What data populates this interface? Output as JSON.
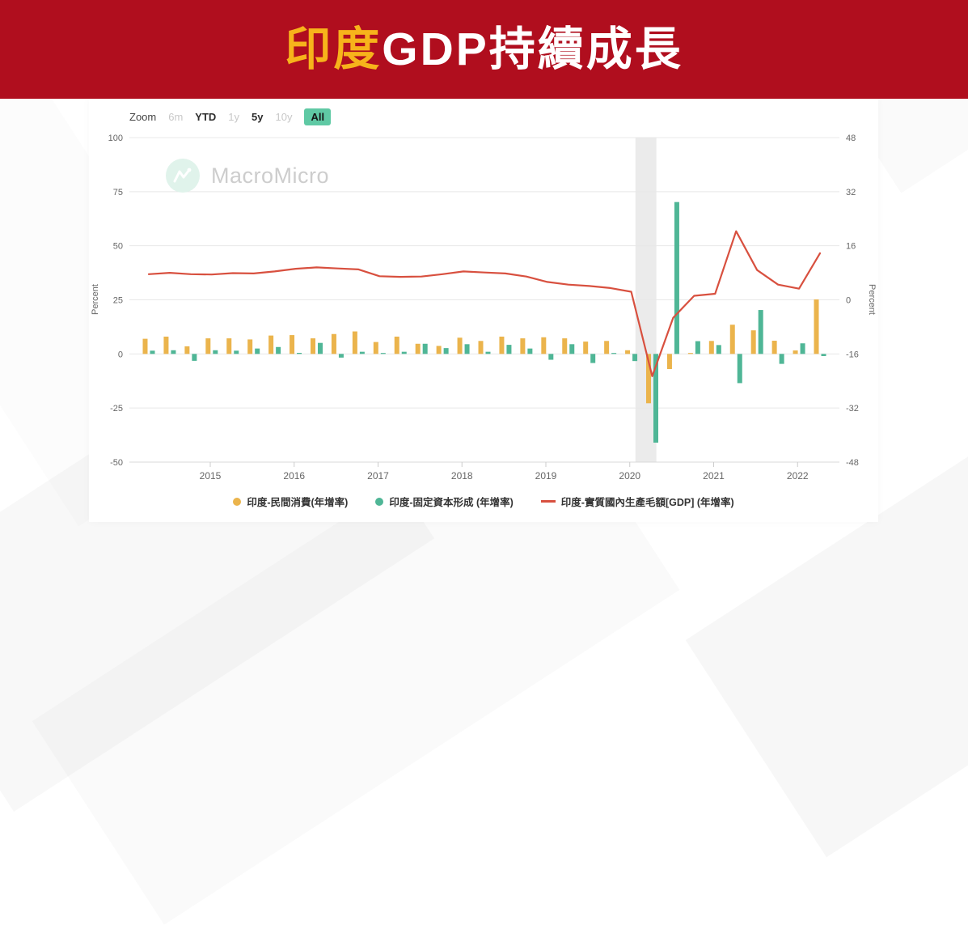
{
  "banner": {
    "title_highlight": "印度",
    "title_rest": "GDP持續成長"
  },
  "watermark": {
    "text": "MacroMicro"
  },
  "toolbar": {
    "buttons": [
      {
        "label": "Zoom",
        "state": "label"
      },
      {
        "label": "6m",
        "state": "disabled"
      },
      {
        "label": "YTD",
        "state": "normal"
      },
      {
        "label": "1y",
        "state": "disabled"
      },
      {
        "label": "5y",
        "state": "normal"
      },
      {
        "label": "10y",
        "state": "disabled"
      },
      {
        "label": "All",
        "state": "active"
      }
    ]
  },
  "legend": [
    {
      "label": "印度-民間消費(年增率)",
      "marker": "circle",
      "color": "#EBB44C"
    },
    {
      "label": "印度-固定資本形成 (年增率)",
      "marker": "circle",
      "color": "#4FB696"
    },
    {
      "label": "印度-實質國內生產毛額[GDP] (年增率)",
      "marker": "line",
      "color": "#D8503F"
    }
  ],
  "chart_data": {
    "type": "combo",
    "x": [
      "2014-04",
      "2014-07",
      "2014-10",
      "2015-01",
      "2015-04",
      "2015-07",
      "2015-10",
      "2016-01",
      "2016-04",
      "2016-07",
      "2016-10",
      "2017-01",
      "2017-04",
      "2017-07",
      "2017-10",
      "2018-01",
      "2018-04",
      "2018-07",
      "2018-10",
      "2019-01",
      "2019-04",
      "2019-07",
      "2019-10",
      "2020-01",
      "2020-04",
      "2020-07",
      "2020-10",
      "2021-01",
      "2021-04",
      "2021-07",
      "2021-10",
      "2022-01",
      "2022-04"
    ],
    "series": [
      {
        "name": "印度-民間消費(年增率)",
        "type": "bar",
        "axis": "left",
        "color": "#EBB44C",
        "values": [
          7.0,
          8.0,
          3.5,
          7.2,
          7.2,
          6.7,
          8.5,
          8.7,
          7.2,
          9.2,
          10.4,
          5.5,
          8.0,
          4.7,
          3.7,
          7.5,
          6.0,
          8.0,
          7.2,
          7.7,
          7.2,
          5.7,
          6.0,
          1.7,
          -22.8,
          -7.0,
          0.4,
          6.0,
          13.5,
          10.9,
          6.1,
          1.6,
          25.2
        ]
      },
      {
        "name": "印度-固定資本形成 (年增率)",
        "type": "bar",
        "axis": "left",
        "color": "#4FB696",
        "values": [
          1.5,
          1.7,
          -3.2,
          1.7,
          1.5,
          2.5,
          3.2,
          0.5,
          5.1,
          -1.7,
          1.0,
          0.2,
          1.0,
          4.7,
          2.7,
          4.5,
          1.0,
          4.2,
          2.5,
          -2.7,
          4.5,
          -4.2,
          0.3,
          -3.3,
          -41.0,
          70.2,
          5.9,
          4.1,
          -13.5,
          20.3,
          -4.6,
          4.9,
          -1.0
        ]
      },
      {
        "name": "印度-實質國內生產毛額[GDP] (年增率)",
        "type": "line",
        "axis": "right",
        "color": "#D8503F",
        "values": [
          7.6,
          8.0,
          7.6,
          7.5,
          7.9,
          7.8,
          8.4,
          9.2,
          9.6,
          9.3,
          9.0,
          7.0,
          6.8,
          6.9,
          7.6,
          8.4,
          8.1,
          7.8,
          6.9,
          5.3,
          4.5,
          4.1,
          3.5,
          2.4,
          -22.6,
          -5.3,
          1.2,
          1.8,
          20.3,
          8.8,
          4.5,
          3.3,
          13.8
        ]
      }
    ],
    "left_axis": {
      "label": "Percent",
      "ticks": [
        100,
        75,
        50,
        25,
        0,
        -25,
        -50
      ],
      "range": [
        -50,
        100
      ]
    },
    "right_axis": {
      "label": "Percent",
      "ticks": [
        48,
        32,
        16,
        0,
        -16,
        -32,
        -48
      ],
      "range": [
        -48,
        48
      ]
    },
    "x_tick_years": [
      2015,
      2016,
      2017,
      2018,
      2019,
      2020,
      2021,
      2022
    ],
    "recession_band": {
      "from_index": 23.2,
      "to_index": 24.2
    },
    "grid": true,
    "legend_position": "bottom"
  }
}
